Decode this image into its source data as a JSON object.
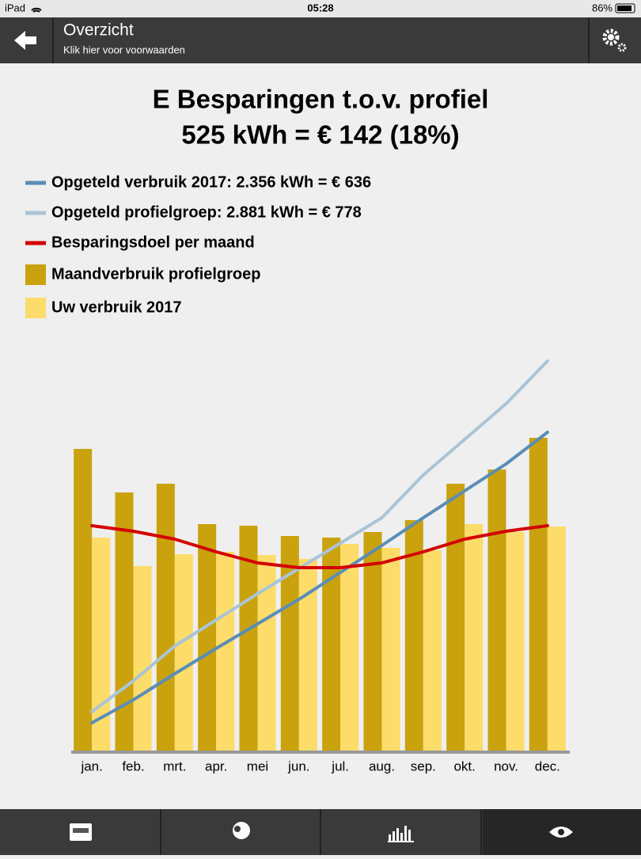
{
  "status": {
    "device": "iPad",
    "time": "05:28",
    "battery": "86%"
  },
  "header": {
    "title": "Overzicht",
    "subtitle": "Klik hier voor voorwaarden"
  },
  "chart_data": {
    "type": "bar",
    "title": "E Besparingen t.o.v. profiel",
    "subtitle": "525 kWh = € 142 (18%)",
    "categories": [
      "jan.",
      "feb.",
      "mrt.",
      "apr.",
      "mei",
      "jun.",
      "jul.",
      "aug.",
      "sep.",
      "okt.",
      "nov.",
      "dec."
    ],
    "ylim": [
      0,
      500
    ],
    "series": [
      {
        "name": "Opgeteld verbruik 2017: 2.356 kWh = € 636",
        "type": "line",
        "color": "#5b8db5",
        "values": [
          35,
          64,
          97,
          129,
          160,
          191,
          225,
          259,
          294,
          328,
          362,
          402
        ]
      },
      {
        "name": "Opgeteld profielgroep: 2.881 kWh = € 778",
        "type": "line",
        "color": "#a9c4d6",
        "values": [
          49,
          88,
          132,
          165,
          198,
          230,
          262,
          294,
          348,
          393,
          438,
          492
        ]
      },
      {
        "name": "Besparingsdoel per maand",
        "type": "line",
        "color": "#d40000",
        "values": [
          284,
          277,
          267,
          251,
          237,
          231,
          231,
          237,
          251,
          267,
          277,
          284
        ]
      },
      {
        "name": "Maandverbruik profielgroep",
        "type": "bar",
        "color": "#c9a20e",
        "values": [
          381,
          326,
          337,
          286,
          284,
          271,
          269,
          276,
          291,
          337,
          355,
          395
        ]
      },
      {
        "name": "Uw verbruik 2017",
        "type": "bar",
        "color": "#fddc6a",
        "values": [
          269,
          233,
          248,
          251,
          247,
          242,
          261,
          256,
          253,
          286,
          276,
          283
        ]
      }
    ]
  }
}
